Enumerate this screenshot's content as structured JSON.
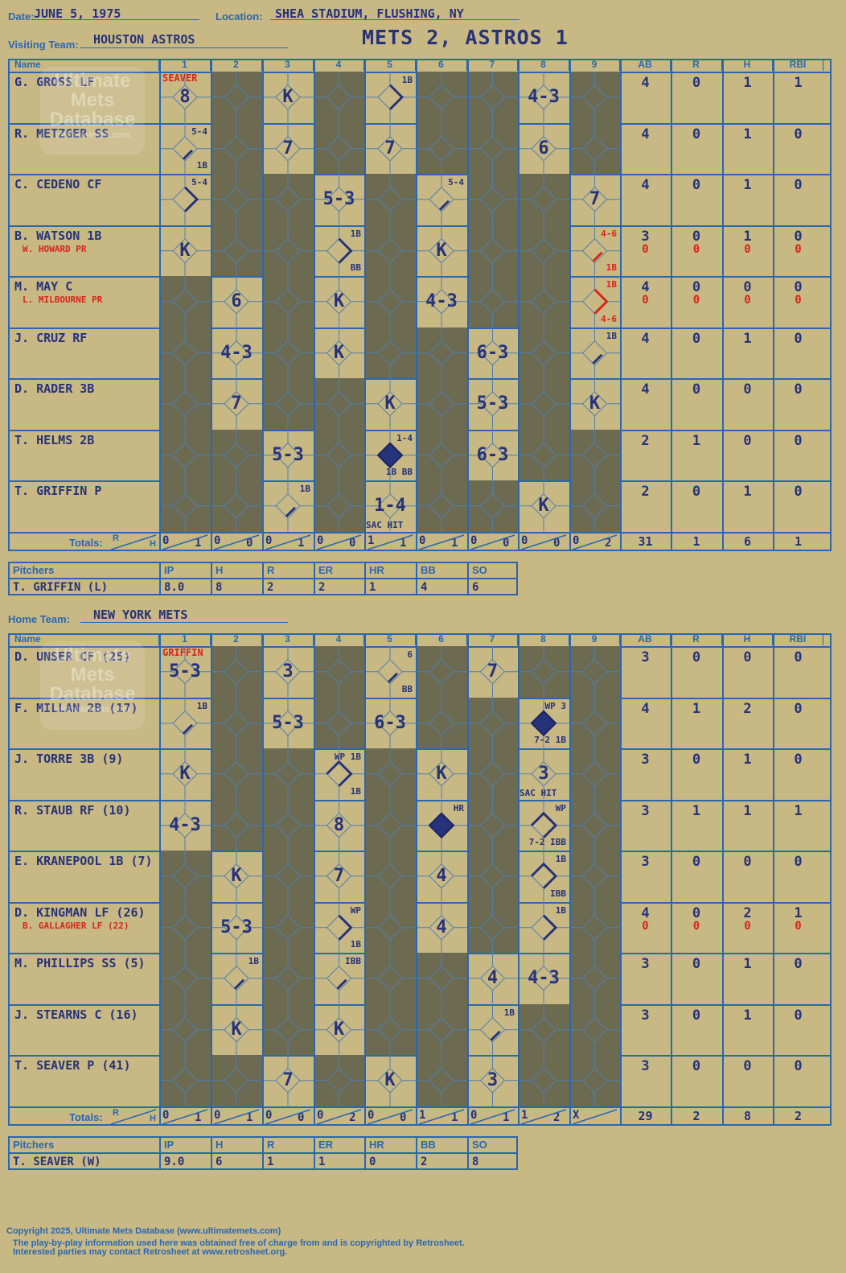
{
  "meta": {
    "date_label": "Date:",
    "date": "JUNE 5, 1975",
    "location_label": "Location:",
    "location": "SHEA STADIUM, FLUSHING, NY",
    "title": "METS 2, ASTROS 1",
    "visiting_label": "Visiting Team:",
    "visiting_team": "HOUSTON ASTROS",
    "home_label": "Home Team:",
    "home_team": "NEW YORK METS"
  },
  "watermark": {
    "line1": "Ultimate",
    "line2": "Mets",
    "line3": "Database",
    "url": "ultimatemets.com"
  },
  "headers": {
    "name": "Name",
    "innings": [
      "1",
      "2",
      "3",
      "4",
      "5",
      "6",
      "7",
      "8",
      "9"
    ],
    "stats": [
      "AB",
      "R",
      "H",
      "RBI"
    ],
    "totals": "Totals:",
    "r": "R",
    "h": "H"
  },
  "pitch_headers": [
    "Pitchers",
    "IP",
    "H",
    "R",
    "ER",
    "HR",
    "BB",
    "SO"
  ],
  "visitors": {
    "pitcher_note": "SEAVER",
    "players": [
      {
        "name": "G. GROSS LF",
        "sub": "",
        "ab": "4",
        "r": "0",
        "h": "1",
        "rbi": "1",
        "ab2": "",
        "r2": "",
        "h2": "",
        "rbi2": "",
        "cells": [
          {
            "res": "8"
          },
          {
            "dark": true
          },
          {
            "res": "K"
          },
          {
            "dark": true
          },
          {
            "notes": [
              "1B"
            ],
            "path": "1"
          },
          {
            "dark": true
          },
          {
            "dark": true
          },
          {
            "res": "4-3"
          },
          {
            "dark": true
          }
        ]
      },
      {
        "name": "R. METZGER SS",
        "sub": "",
        "ab": "4",
        "r": "0",
        "h": "1",
        "rbi": "0",
        "ab2": "",
        "r2": "",
        "h2": "",
        "rbi2": "",
        "cells": [
          {
            "notes": [
              "5-4",
              "1B"
            ],
            "path": "1s"
          },
          {
            "dark": true
          },
          {
            "res": "7"
          },
          {
            "dark": true
          },
          {
            "res": "7"
          },
          {
            "dark": true
          },
          {
            "dark": true
          },
          {
            "res": "6"
          },
          {
            "dark": true
          }
        ]
      },
      {
        "name": "C. CEDENO CF",
        "sub": "",
        "ab": "4",
        "r": "0",
        "h": "1",
        "rbi": "0",
        "ab2": "",
        "r2": "",
        "h2": "",
        "rbi2": "",
        "cells": [
          {
            "notes": [
              "5-4"
            ],
            "path": "1"
          },
          {
            "dark": true
          },
          {
            "dark": true
          },
          {
            "res": "5-3"
          },
          {
            "dark": true
          },
          {
            "notes": [
              "5-4"
            ],
            "path": "1s"
          },
          {
            "dark": true
          },
          {
            "dark": true
          },
          {
            "res": "7"
          }
        ]
      },
      {
        "name": "B. WATSON 1B",
        "sub": "W. HOWARD PR",
        "ab": "3",
        "r": "0",
        "h": "1",
        "rbi": "0",
        "ab2": "0",
        "r2": "0",
        "h2": "0",
        "rbi2": "0",
        "cells": [
          {
            "res": "K"
          },
          {
            "dark": true
          },
          {
            "dark": true
          },
          {
            "notes": [
              "1B",
              "BB"
            ],
            "path": "1"
          },
          {
            "dark": true
          },
          {
            "res": "K"
          },
          {
            "dark": true
          },
          {
            "dark": true
          },
          {
            "notes": [
              "4-6",
              "1B"
            ],
            "path": "1s",
            "red": true
          }
        ]
      },
      {
        "name": "M. MAY C",
        "sub": "L. MILBOURNE PR",
        "ab": "4",
        "r": "0",
        "h": "0",
        "rbi": "0",
        "ab2": "0",
        "r2": "0",
        "h2": "0",
        "rbi2": "0",
        "cells": [
          {
            "dark": true
          },
          {
            "res": "6"
          },
          {
            "dark": true
          },
          {
            "res": "K"
          },
          {
            "dark": true
          },
          {
            "res": "4-3"
          },
          {
            "dark": true
          },
          {
            "dark": true
          },
          {
            "notes": [
              "1B",
              "4-6"
            ],
            "path": "1",
            "red": true
          }
        ]
      },
      {
        "name": "J. CRUZ RF",
        "sub": "",
        "ab": "4",
        "r": "0",
        "h": "1",
        "rbi": "0",
        "ab2": "",
        "r2": "",
        "h2": "",
        "rbi2": "",
        "cells": [
          {
            "dark": true
          },
          {
            "res": "4-3"
          },
          {
            "dark": true
          },
          {
            "res": "K"
          },
          {
            "dark": true
          },
          {
            "dark": true
          },
          {
            "res": "6-3"
          },
          {
            "dark": true
          },
          {
            "notes": [
              "1B"
            ],
            "path": "1s"
          }
        ]
      },
      {
        "name": "D. RADER 3B",
        "sub": "",
        "ab": "4",
        "r": "0",
        "h": "0",
        "rbi": "0",
        "ab2": "",
        "r2": "",
        "h2": "",
        "rbi2": "",
        "cells": [
          {
            "dark": true
          },
          {
            "res": "7"
          },
          {
            "dark": true
          },
          {
            "dark": true
          },
          {
            "res": "K"
          },
          {
            "dark": true
          },
          {
            "res": "5-3"
          },
          {
            "dark": true
          },
          {
            "res": "K"
          }
        ]
      },
      {
        "name": "T. HELMS 2B",
        "sub": "",
        "ab": "2",
        "r": "1",
        "h": "0",
        "rbi": "0",
        "ab2": "",
        "r2": "",
        "h2": "",
        "rbi2": "",
        "cells": [
          {
            "dark": true
          },
          {
            "dark": true
          },
          {
            "res": "5-3"
          },
          {
            "dark": true
          },
          {
            "notes": [
              "1-4",
              "1B BB"
            ],
            "path": "run"
          },
          {
            "dark": true
          },
          {
            "res": "6-3"
          },
          {
            "dark": true
          },
          {
            "dark": true
          }
        ]
      },
      {
        "name": "T. GRIFFIN P",
        "sub": "",
        "ab": "2",
        "r": "0",
        "h": "1",
        "rbi": "0",
        "ab2": "",
        "r2": "",
        "h2": "",
        "rbi2": "",
        "cells": [
          {
            "dark": true
          },
          {
            "dark": true
          },
          {
            "notes": [
              "1B"
            ],
            "path": "1s"
          },
          {
            "dark": true
          },
          {
            "res": "1-4",
            "notes": [
              "SAC HIT"
            ]
          },
          {
            "dark": true
          },
          {
            "dark": true
          },
          {
            "res": "K"
          },
          {
            "dark": true
          }
        ]
      }
    ],
    "totals": {
      "innings": [
        [
          "0",
          "1"
        ],
        [
          "0",
          "0"
        ],
        [
          "0",
          "1"
        ],
        [
          "0",
          "0"
        ],
        [
          "1",
          "1"
        ],
        [
          "0",
          "1"
        ],
        [
          "0",
          "0"
        ],
        [
          "0",
          "0"
        ],
        [
          "0",
          "2"
        ]
      ],
      "ab": "31",
      "r": "1",
      "h": "6",
      "rbi": "1"
    },
    "pitchers": [
      {
        "name": "T. GRIFFIN (L)",
        "ip": "8.0",
        "h": "8",
        "r": "2",
        "er": "2",
        "hr": "1",
        "bb": "4",
        "so": "6"
      }
    ]
  },
  "home": {
    "pitcher_note": "GRIFFIN",
    "players": [
      {
        "name": "D. UNSER CF (25)",
        "sub": "",
        "ab": "3",
        "r": "0",
        "h": "0",
        "rbi": "0",
        "ab2": "",
        "r2": "",
        "h2": "",
        "rbi2": "",
        "cells": [
          {
            "res": "5-3"
          },
          {
            "dark": true
          },
          {
            "res": "3"
          },
          {
            "dark": true
          },
          {
            "notes": [
              "6",
              "BB"
            ],
            "path": "1s"
          },
          {
            "dark": true
          },
          {
            "res": "7"
          },
          {
            "dark": true
          },
          {
            "dark": true
          }
        ]
      },
      {
        "name": "F. MILLAN 2B (17)",
        "sub": "",
        "ab": "4",
        "r": "1",
        "h": "2",
        "rbi": "0",
        "ab2": "",
        "r2": "",
        "h2": "",
        "rbi2": "",
        "cells": [
          {
            "notes": [
              "1B"
            ],
            "path": "1s"
          },
          {
            "dark": true
          },
          {
            "res": "5-3"
          },
          {
            "dark": true
          },
          {
            "res": "6-3"
          },
          {
            "dark": true
          },
          {
            "dark": true
          },
          {
            "notes": [
              "WP 3",
              "7-2 1B"
            ],
            "path": "run"
          },
          {
            "dark": true
          }
        ]
      },
      {
        "name": "J. TORRE 3B (9)",
        "sub": "",
        "ab": "3",
        "r": "0",
        "h": "1",
        "rbi": "0",
        "ab2": "",
        "r2": "",
        "h2": "",
        "rbi2": "",
        "cells": [
          {
            "res": "K"
          },
          {
            "dark": true
          },
          {
            "dark": true
          },
          {
            "notes": [
              "WP 1B",
              "1B"
            ],
            "path": "2"
          },
          {
            "dark": true
          },
          {
            "res": "K"
          },
          {
            "dark": true
          },
          {
            "res": "3",
            "notes": [
              "SAC HIT"
            ]
          },
          {
            "dark": true
          }
        ]
      },
      {
        "name": "R. STAUB RF (10)",
        "sub": "",
        "ab": "3",
        "r": "1",
        "h": "1",
        "rbi": "1",
        "ab2": "",
        "r2": "",
        "h2": "",
        "rbi2": "",
        "cells": [
          {
            "res": "4-3"
          },
          {
            "dark": true
          },
          {
            "dark": true
          },
          {
            "res": "8"
          },
          {
            "dark": true
          },
          {
            "notes": [
              "HR"
            ],
            "path": "run"
          },
          {
            "dark": true
          },
          {
            "notes": [
              "WP",
              "7-2 IBB"
            ],
            "path": "2"
          },
          {
            "dark": true
          }
        ]
      },
      {
        "name": "E. KRANEPOOL 1B (7)",
        "sub": "",
        "ab": "3",
        "r": "0",
        "h": "0",
        "rbi": "0",
        "ab2": "",
        "r2": "",
        "h2": "",
        "rbi2": "",
        "cells": [
          {
            "dark": true
          },
          {
            "res": "K"
          },
          {
            "dark": true
          },
          {
            "res": "7"
          },
          {
            "dark": true
          },
          {
            "res": "4"
          },
          {
            "dark": true
          },
          {
            "notes": [
              "1B",
              "IBB"
            ],
            "path": "2"
          },
          {
            "dark": true
          }
        ]
      },
      {
        "name": "D. KINGMAN LF (26)",
        "sub": "B. GALLAGHER LF (22)",
        "ab": "4",
        "r": "0",
        "h": "2",
        "rbi": "1",
        "ab2": "0",
        "r2": "0",
        "h2": "0",
        "rbi2": "0",
        "cells": [
          {
            "dark": true
          },
          {
            "res": "5-3"
          },
          {
            "dark": true
          },
          {
            "notes": [
              "WP",
              "1B"
            ],
            "path": "1"
          },
          {
            "dark": true
          },
          {
            "res": "4"
          },
          {
            "dark": true
          },
          {
            "notes": [
              "1B"
            ],
            "path": "1"
          },
          {
            "dark": true
          }
        ]
      },
      {
        "name": "M. PHILLIPS SS (5)",
        "sub": "",
        "ab": "3",
        "r": "0",
        "h": "1",
        "rbi": "0",
        "ab2": "",
        "r2": "",
        "h2": "",
        "rbi2": "",
        "cells": [
          {
            "dark": true
          },
          {
            "notes": [
              "1B"
            ],
            "path": "1s"
          },
          {
            "dark": true
          },
          {
            "notes": [
              "IBB"
            ],
            "path": "1s"
          },
          {
            "dark": true
          },
          {
            "dark": true
          },
          {
            "res": "4"
          },
          {
            "res": "4-3"
          },
          {
            "dark": true
          }
        ]
      },
      {
        "name": "J. STEARNS C (16)",
        "sub": "",
        "ab": "3",
        "r": "0",
        "h": "1",
        "rbi": "0",
        "ab2": "",
        "r2": "",
        "h2": "",
        "rbi2": "",
        "cells": [
          {
            "dark": true
          },
          {
            "res": "K"
          },
          {
            "dark": true
          },
          {
            "res": "K"
          },
          {
            "dark": true
          },
          {
            "dark": true
          },
          {
            "notes": [
              "1B"
            ],
            "path": "1s"
          },
          {
            "dark": true
          },
          {
            "dark": true
          }
        ]
      },
      {
        "name": "T. SEAVER P (41)",
        "sub": "",
        "ab": "3",
        "r": "0",
        "h": "0",
        "rbi": "0",
        "ab2": "",
        "r2": "",
        "h2": "",
        "rbi2": "",
        "cells": [
          {
            "dark": true
          },
          {
            "dark": true
          },
          {
            "res": "7"
          },
          {
            "dark": true
          },
          {
            "res": "K"
          },
          {
            "dark": true
          },
          {
            "res": "3"
          },
          {
            "dark": true
          },
          {
            "dark": true
          }
        ]
      }
    ],
    "totals": {
      "innings": [
        [
          "0",
          "1"
        ],
        [
          "0",
          "1"
        ],
        [
          "0",
          "0"
        ],
        [
          "0",
          "2"
        ],
        [
          "0",
          "0"
        ],
        [
          "1",
          "1"
        ],
        [
          "0",
          "1"
        ],
        [
          "1",
          "2"
        ],
        [
          "X",
          ""
        ]
      ],
      "ab": "29",
      "r": "2",
      "h": "8",
      "rbi": "2"
    },
    "pitchers": [
      {
        "name": "T. SEAVER (W)",
        "ip": "9.0",
        "h": "6",
        "r": "1",
        "er": "1",
        "hr": "0",
        "bb": "2",
        "so": "8"
      }
    ]
  },
  "footer": {
    "line1": "Copyright 2025, Ultimate Mets Database (www.ultimatemets.com)",
    "line2": "The play-by-play information used here was obtained free of charge from and is copyrighted by Retrosheet.",
    "line3": "Interested parties may contact Retrosheet at www.retrosheet.org."
  }
}
